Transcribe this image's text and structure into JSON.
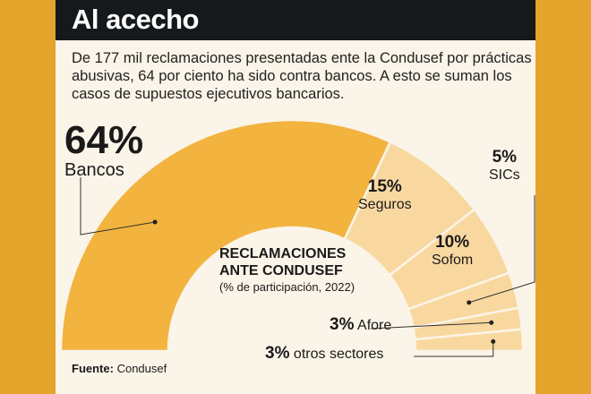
{
  "header": {
    "title": "Al acecho"
  },
  "intro": "De 177 mil reclamaciones presentadas ente la Condusef por prácticas abusivas, 64 por ciento ha sido contra bancos. A esto se suman los casos de supuestos ejecutivos bancarios.",
  "chart_data": {
    "type": "pie",
    "subtype": "half-donut",
    "title": "RECLAMACIONES ANTE CONDUSEF",
    "subtitle": "(% de participación, 2022)",
    "categories": [
      "Bancos",
      "Seguros",
      "Sofom",
      "SICs",
      "Afore",
      "otros sectores"
    ],
    "values": [
      64,
      15,
      10,
      5,
      3,
      3
    ],
    "value_labels": [
      "64%",
      "15%",
      "10%",
      "5%",
      "3%",
      "3%"
    ],
    "colors": [
      "#F2B33F",
      "#F9D8A0",
      "#F9D8A0",
      "#F9D8A0",
      "#F9D8A0",
      "#F9D8A0"
    ]
  },
  "source": {
    "label": "Fuente:",
    "value": "Condusef"
  }
}
